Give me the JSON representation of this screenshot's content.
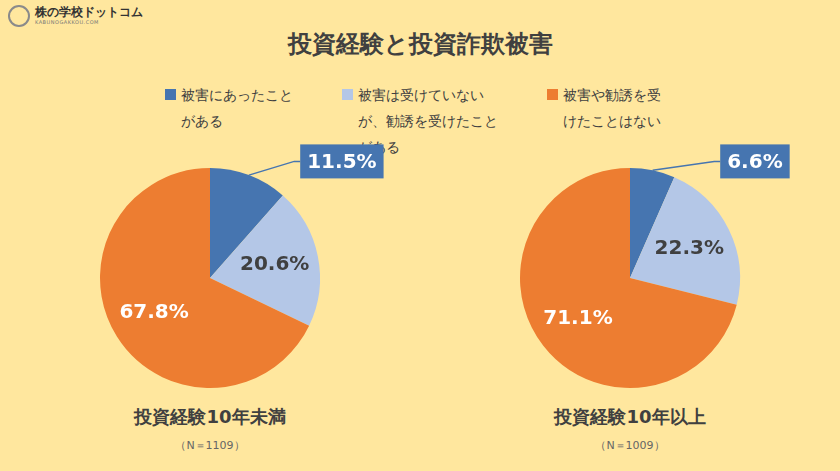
{
  "header": {
    "logo": "株の学校ドットコム",
    "logo_sub": "KABUNOGAKKOU.COM"
  },
  "title": "投資経験と投資詐欺被害",
  "chart_data": [
    {
      "type": "pie",
      "title": "投資経験10年未満",
      "subtitle": "（N＝1109）",
      "categories": [
        "被害にあったことがある",
        "被害は受けていないが、勧誘を受けたことがある",
        "被害や勧誘を受けたことはない"
      ],
      "values": [
        11.5,
        20.6,
        67.8
      ],
      "value_labels": [
        "11.5%",
        "20.6%",
        "67.8%"
      ],
      "colors": [
        "#4675B0",
        "#B4C7E7",
        "#ED7D31"
      ],
      "data_labels": true,
      "legend": "top"
    },
    {
      "type": "pie",
      "title": "投資経験10年以上",
      "subtitle": "（N＝1009）",
      "categories": [
        "被害にあったことがある",
        "被害は受けていないが、勧誘を受けたことがある",
        "被害や勧誘を受けたことはない"
      ],
      "values": [
        6.6,
        22.3,
        71.1
      ],
      "value_labels": [
        "6.6%",
        "22.3%",
        "71.1%"
      ],
      "colors": [
        "#4675B0",
        "#B4C7E7",
        "#ED7D31"
      ],
      "data_labels": true,
      "legend": "top"
    }
  ]
}
